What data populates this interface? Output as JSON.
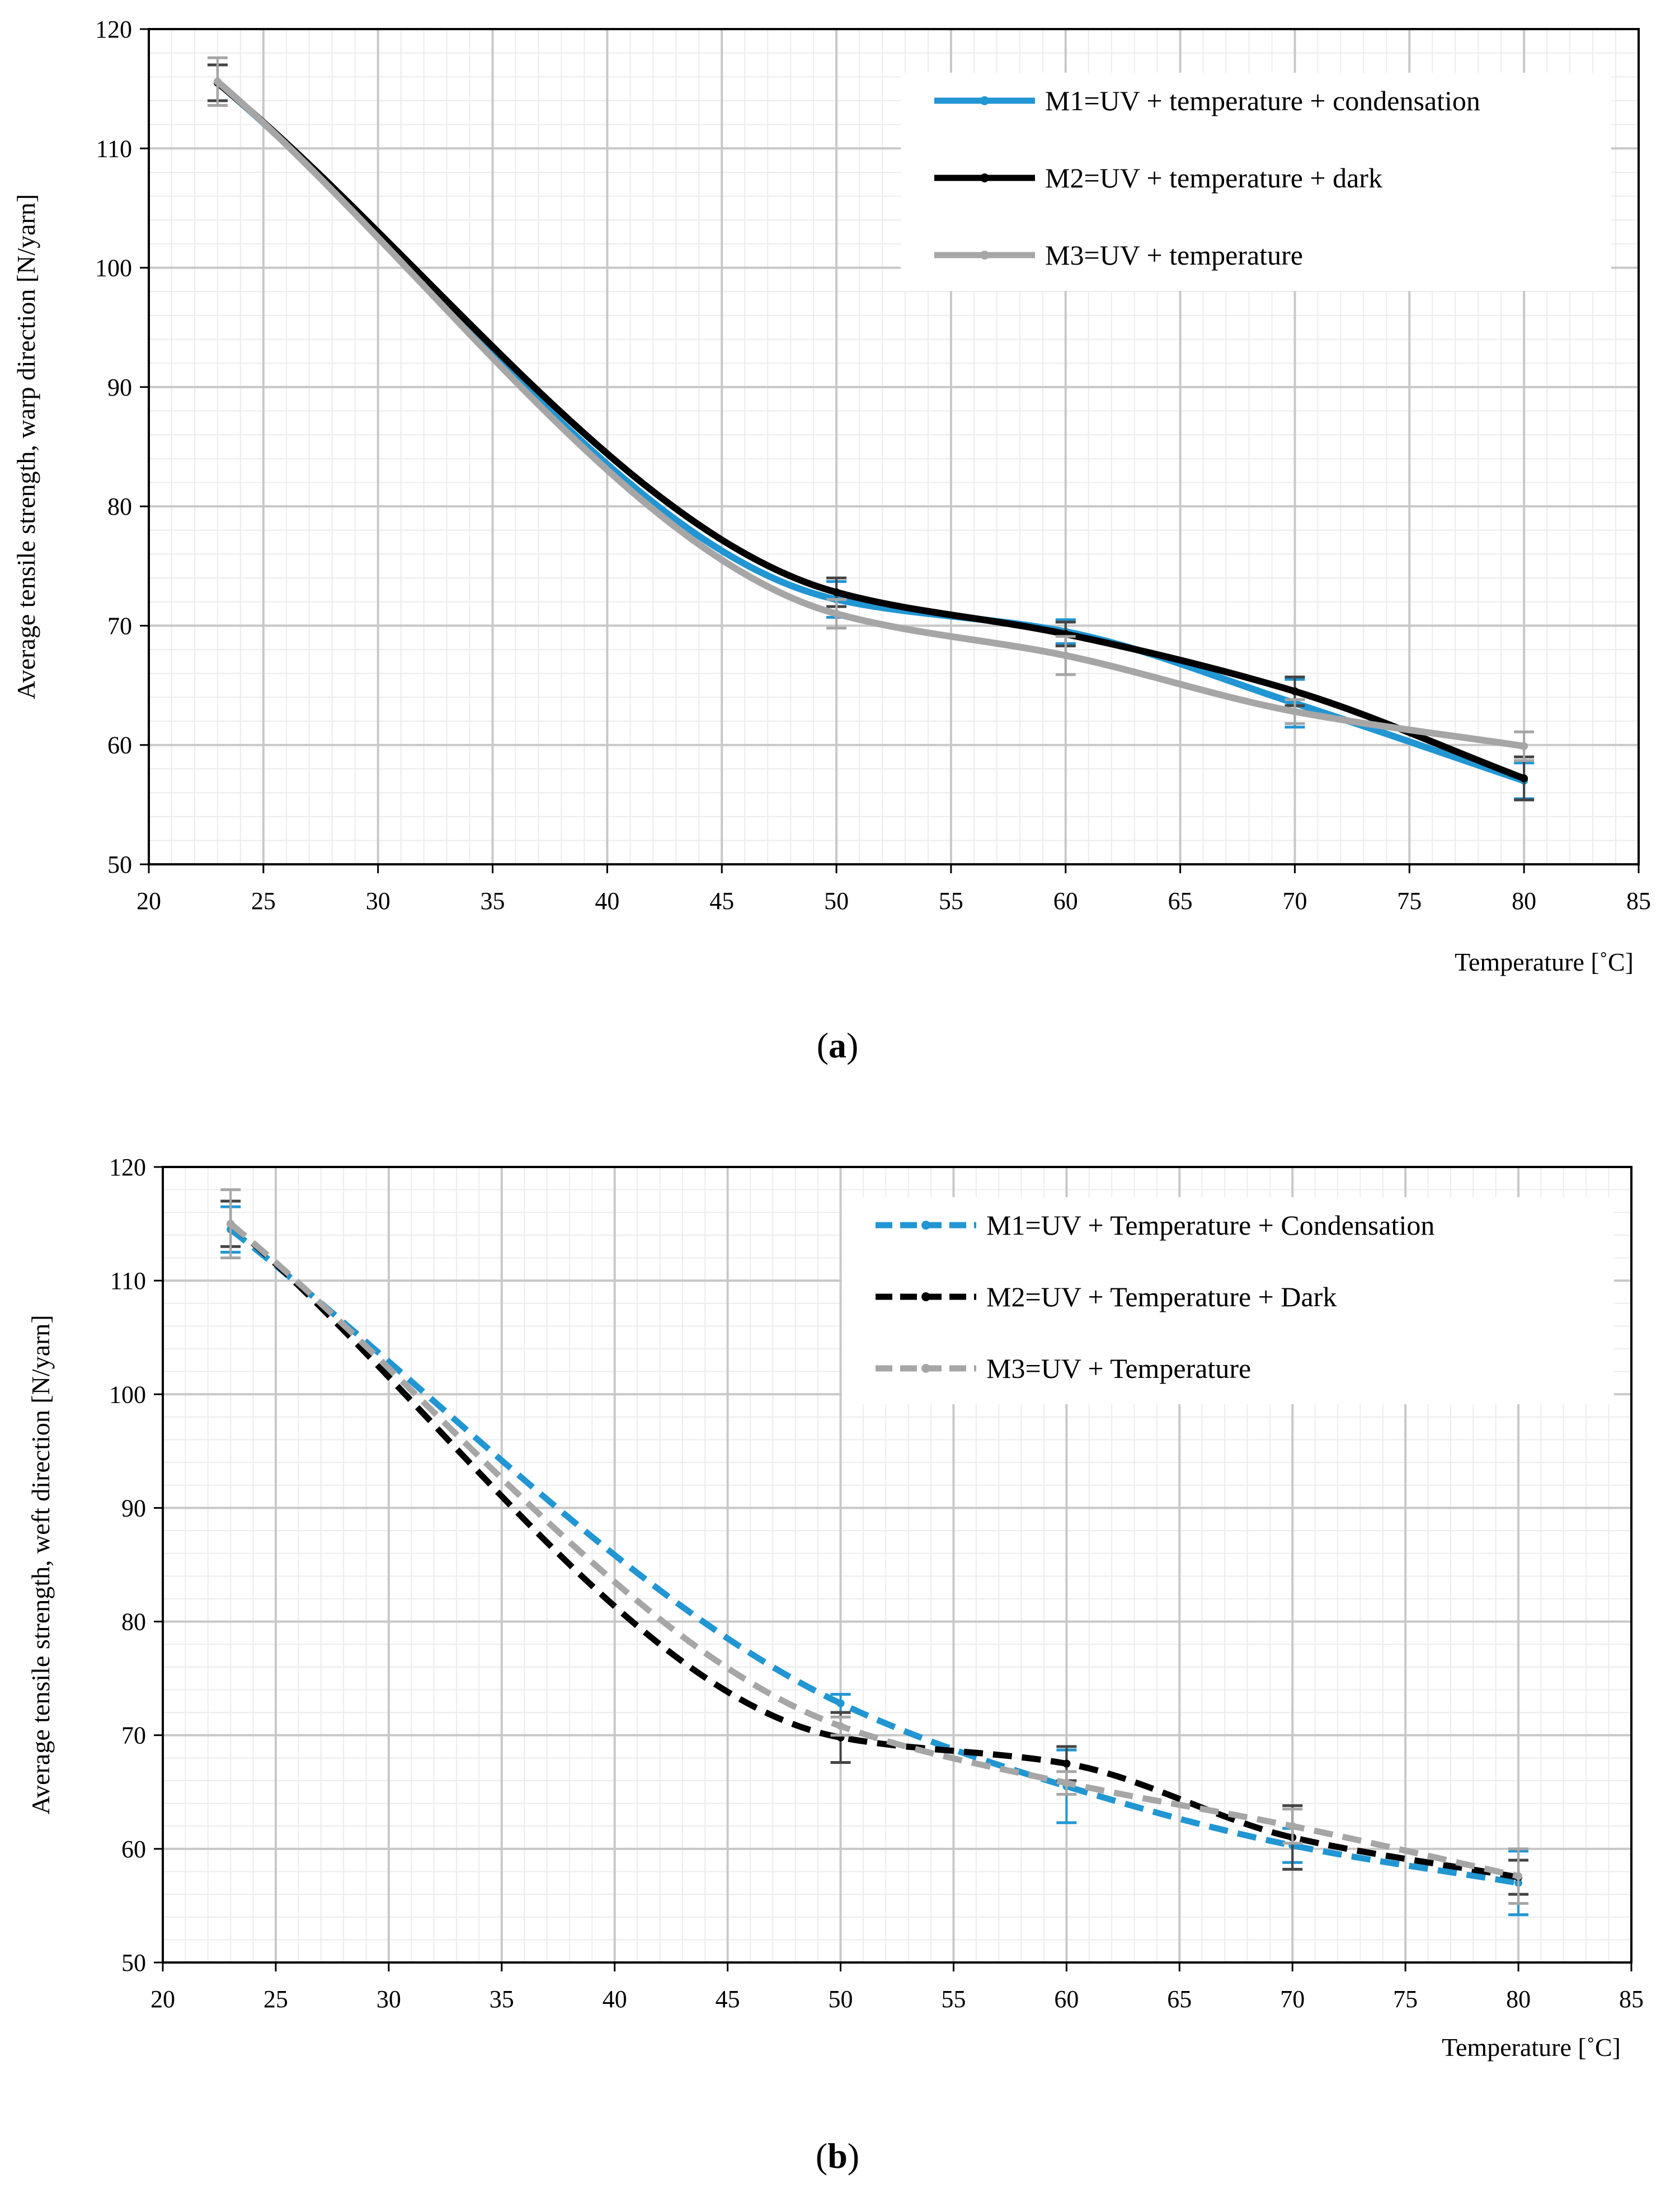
{
  "chart_data": [
    {
      "type": "line",
      "caption_letter": "a",
      "xlabel": "Temperature   [˚C]",
      "ylabel": "Average tensile strength,  warp  direction [N/yarn]",
      "xlim": [
        20,
        85
      ],
      "ylim": [
        50,
        120
      ],
      "x_ticks": [
        "20",
        "25",
        "30",
        "35",
        "40",
        "45",
        "50",
        "55",
        "60",
        "65",
        "70",
        "75",
        "80",
        "85"
      ],
      "y_ticks": [
        "50",
        "60",
        "70",
        "80",
        "90",
        "100",
        "110",
        "120"
      ],
      "x": [
        23,
        50,
        60,
        70,
        80
      ],
      "series": [
        {
          "name": "M1=UV + temperature + condensation",
          "color": "#2196D3",
          "dash": "solid",
          "values": [
            115.5,
            72.2,
            69.5,
            63.5,
            57.0
          ],
          "error": [
            1.5,
            1.5,
            1.0,
            2.0,
            1.5
          ]
        },
        {
          "name": "M2=UV + temperature + dark",
          "color": "#000000",
          "dash": "solid",
          "values": [
            115.5,
            72.8,
            69.3,
            64.5,
            57.2
          ],
          "error": [
            1.5,
            1.2,
            1.0,
            1.2,
            1.8
          ]
        },
        {
          "name": "M3=UV + temperature",
          "color": "#A6A6A6",
          "dash": "solid",
          "values": [
            115.6,
            71.0,
            67.5,
            62.8,
            59.9
          ],
          "error": [
            2.0,
            1.2,
            1.6,
            1.0,
            1.2
          ]
        }
      ]
    },
    {
      "type": "line",
      "caption_letter": "b",
      "xlabel": "Temperature   [˚C]",
      "ylabel": "Average tensile strength,  weft  direction [N/yarn]",
      "xlim": [
        20,
        85
      ],
      "ylim": [
        50,
        120
      ],
      "x_ticks": [
        "20",
        "25",
        "30",
        "35",
        "40",
        "45",
        "50",
        "55",
        "60",
        "65",
        "70",
        "75",
        "80",
        "85"
      ],
      "y_ticks": [
        "50",
        "60",
        "70",
        "80",
        "90",
        "100",
        "110",
        "120"
      ],
      "x": [
        23,
        50,
        60,
        70,
        80
      ],
      "series": [
        {
          "name": "M1=UV + Temperature + Condensation",
          "color": "#2196D3",
          "dash": "dashed",
          "values": [
            114.5,
            72.8,
            65.5,
            60.3,
            57.0
          ],
          "error": [
            2.0,
            0.8,
            3.2,
            1.5,
            2.8
          ]
        },
        {
          "name": "M2=UV + Temperature + Dark",
          "color": "#000000",
          "dash": "dashed",
          "values": [
            115.0,
            69.8,
            67.5,
            61.0,
            57.5
          ],
          "error": [
            2.0,
            2.2,
            1.5,
            2.8,
            1.5
          ]
        },
        {
          "name": "M3=UV + Temperature",
          "color": "#A6A6A6",
          "dash": "dashed",
          "values": [
            115.0,
            70.8,
            65.8,
            62.0,
            57.6
          ],
          "error": [
            3.0,
            0.8,
            1.0,
            1.5,
            2.4
          ]
        }
      ]
    }
  ]
}
